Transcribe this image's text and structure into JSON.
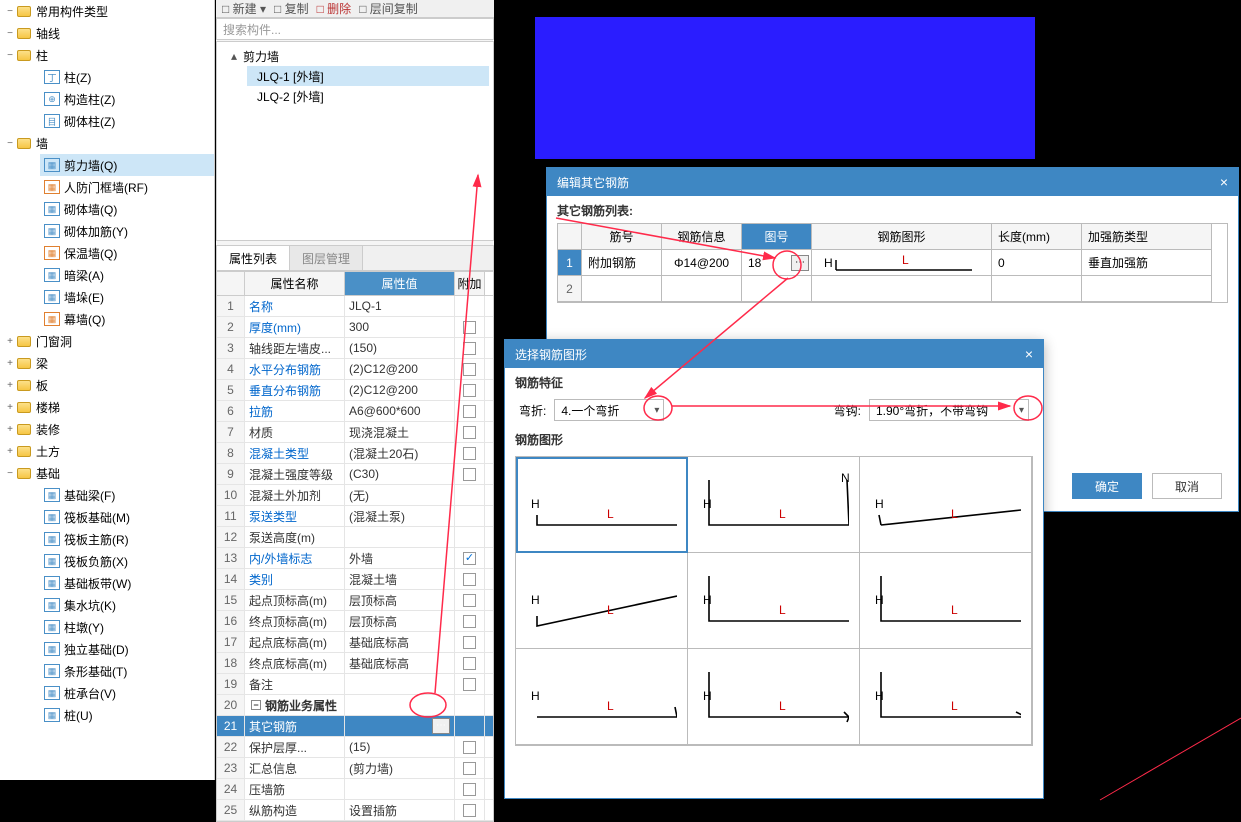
{
  "colors": {
    "accent": "#3e87c3",
    "bluefill": "#2a1dff",
    "annot": "#ff2a4a",
    "link": "#0066cc",
    "folder": "#f6c644"
  },
  "toolbar": {
    "new": "新建",
    "copy": "复制",
    "del": "删除",
    "layercopy": "层间复制"
  },
  "tree": {
    "top1": "常用构件类型",
    "top2": "轴线",
    "top3": "柱",
    "zhu_items": [
      "柱(Z)",
      "构造柱(Z)",
      "砌体柱(Z)"
    ],
    "top4": "墙",
    "wall_items": [
      "剪力墙(Q)",
      "人防门框墙(RF)",
      "砌体墙(Q)",
      "砌体加筋(Y)",
      "保温墙(Q)",
      "暗梁(A)",
      "墙垛(E)",
      "幕墙(Q)"
    ],
    "wall_selected_idx": 0,
    "g1": "门窗洞",
    "g2": "梁",
    "g3": "板",
    "g4": "楼梯",
    "g5": "装修",
    "g6": "土方",
    "g7": "基础",
    "jc_items": [
      "基础梁(F)",
      "筏板基础(M)",
      "筏板主筋(R)",
      "筏板负筋(X)",
      "基础板带(W)",
      "集水坑(K)",
      "柱墩(Y)",
      "独立基础(D)",
      "条形基础(T)",
      "桩承台(V)",
      "桩(U)"
    ]
  },
  "search_placeholder": "搜索构件...",
  "components": {
    "group": "剪力墙",
    "items": [
      "JLQ-1 [外墙]",
      "JLQ-2 [外墙]"
    ],
    "selected_idx": 0
  },
  "tabs": {
    "t1": "属性列表",
    "t2": "图层管理"
  },
  "prop_header": {
    "name": "属性名称",
    "val": "属性值",
    "add": "附加"
  },
  "props": [
    {
      "n": "1",
      "name": "名称",
      "val": "JLQ-1",
      "chk": null,
      "link": true
    },
    {
      "n": "2",
      "name": "厚度(mm)",
      "val": "300",
      "chk": false,
      "link": true
    },
    {
      "n": "3",
      "name": "轴线距左墙皮...",
      "val": "(150)",
      "chk": false,
      "link": false
    },
    {
      "n": "4",
      "name": "水平分布钢筋",
      "val": "(2)C12@200",
      "chk": false,
      "link": true
    },
    {
      "n": "5",
      "name": "垂直分布钢筋",
      "val": "(2)C12@200",
      "chk": false,
      "link": true
    },
    {
      "n": "6",
      "name": "拉筋",
      "val": "A6@600*600",
      "chk": false,
      "link": true
    },
    {
      "n": "7",
      "name": "材质",
      "val": "现浇混凝土",
      "chk": false,
      "link": false
    },
    {
      "n": "8",
      "name": "混凝土类型",
      "val": "(混凝土20石)",
      "chk": false,
      "link": true
    },
    {
      "n": "9",
      "name": "混凝土强度等级",
      "val": "(C30)",
      "chk": false,
      "link": false
    },
    {
      "n": "10",
      "name": "混凝土外加剂",
      "val": "(无)",
      "chk": null,
      "link": false
    },
    {
      "n": "11",
      "name": "泵送类型",
      "val": "(混凝土泵)",
      "chk": null,
      "link": true
    },
    {
      "n": "12",
      "name": "泵送高度(m)",
      "val": "",
      "chk": null,
      "link": false
    },
    {
      "n": "13",
      "name": "内/外墙标志",
      "val": "外墙",
      "chk": true,
      "link": true
    },
    {
      "n": "14",
      "name": "类别",
      "val": "混凝土墙",
      "chk": false,
      "link": true
    },
    {
      "n": "15",
      "name": "起点顶标高(m)",
      "val": "层顶标高",
      "chk": false,
      "link": false
    },
    {
      "n": "16",
      "name": "终点顶标高(m)",
      "val": "层顶标高",
      "chk": false,
      "link": false
    },
    {
      "n": "17",
      "name": "起点底标高(m)",
      "val": "基础底标高",
      "chk": false,
      "link": false
    },
    {
      "n": "18",
      "name": "终点底标高(m)",
      "val": "基础底标高",
      "chk": false,
      "link": false
    },
    {
      "n": "19",
      "name": "备注",
      "val": "",
      "chk": false,
      "link": false
    },
    {
      "n": "20",
      "name": "钢筋业务属性",
      "val": "",
      "chk": null,
      "group": true
    },
    {
      "n": "21",
      "name": "其它钢筋",
      "val": "",
      "chk": null,
      "link": true,
      "sel": true,
      "dots": true
    },
    {
      "n": "22",
      "name": "保护层厚...",
      "val": "(15)",
      "chk": false,
      "link": false
    },
    {
      "n": "23",
      "name": "汇总信息",
      "val": "(剪力墙)",
      "chk": false,
      "link": false
    },
    {
      "n": "24",
      "name": "压墙筋",
      "val": "",
      "chk": false,
      "link": false
    },
    {
      "n": "25",
      "name": "纵筋构造",
      "val": "设置插筋",
      "chk": false,
      "link": false
    }
  ],
  "dlg1": {
    "title": "编辑其它钢筋",
    "list_label": "其它钢筋列表:",
    "cols": [
      "筋号",
      "钢筋信息",
      "图号",
      "钢筋图形",
      "长度(mm)",
      "加强筋类型"
    ],
    "row1": {
      "num": "1",
      "c1": "附加钢筋",
      "c2": "Φ14@200",
      "c3": "18",
      "c5": "0",
      "c6": "垂直加强筋"
    },
    "row2_num": "2",
    "ok": "确定",
    "cancel": "取消"
  },
  "dlg2": {
    "title": "选择钢筋图形",
    "sec1": "钢筋特征",
    "bend_label": "弯折:",
    "bend_val": "4.一个弯折",
    "hook_label": "弯钩:",
    "hook_val": "1.90°弯折，不带弯钩",
    "sec2": "钢筋图形"
  },
  "rebar_shapes": {
    "labels": {
      "H": "H",
      "L": "L",
      "N": "N"
    },
    "selected_idx": 0
  }
}
